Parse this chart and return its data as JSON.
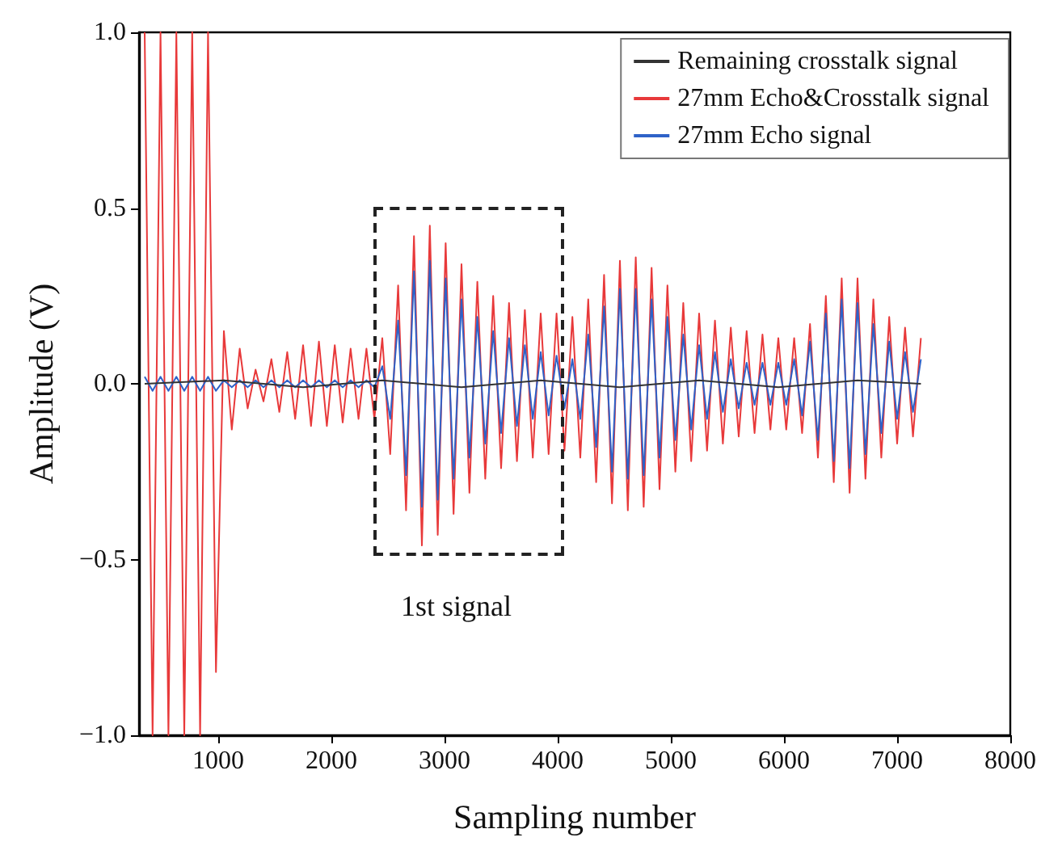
{
  "chart_data": {
    "type": "line",
    "xlabel": "Sampling number",
    "ylabel": "Amplitude (V)",
    "xlim": [
      300,
      8000
    ],
    "xticks": [
      1000,
      2000,
      3000,
      4000,
      5000,
      6000,
      7000,
      8000
    ],
    "ylim": [
      -1.0,
      1.0
    ],
    "yticks": [
      {
        "value": -1.0,
        "label": "−1.0"
      },
      {
        "value": -0.5,
        "label": "−0.5"
      },
      {
        "value": 0,
        "label": "0.0"
      },
      {
        "value": 0.5,
        "label": "0.5"
      },
      {
        "value": 1.0,
        "label": "1.0"
      }
    ],
    "grid": false,
    "legend": "top right",
    "annotations": [
      "1st signal"
    ],
    "x": [
      350,
      420,
      490,
      560,
      630,
      700,
      770,
      840,
      910,
      980,
      1050,
      1120,
      1190,
      1260,
      1330,
      1400,
      1470,
      1540,
      1610,
      1680,
      1750,
      1820,
      1890,
      1960,
      2030,
      2100,
      2170,
      2240,
      2310,
      2380,
      2450,
      2520,
      2590,
      2660,
      2730,
      2800,
      2870,
      2940,
      3010,
      3080,
      3150,
      3220,
      3290,
      3360,
      3430,
      3500,
      3570,
      3640,
      3710,
      3780,
      3850,
      3920,
      3990,
      4060,
      4130,
      4200,
      4270,
      4340,
      4410,
      4480,
      4550,
      4620,
      4690,
      4760,
      4830,
      4900,
      4970,
      5040,
      5110,
      5180,
      5250,
      5320,
      5390,
      5460,
      5530,
      5600,
      5670,
      5740,
      5810,
      5880,
      5950,
      6020,
      6090,
      6160,
      6230,
      6300,
      6370,
      6440,
      6510,
      6580,
      6650,
      6720,
      6790,
      6860,
      6930,
      7000,
      7070,
      7140,
      7210
    ],
    "series": [
      {
        "name": "Remaining crosstalk signal",
        "color": "#333333",
        "x": [
          350,
          1050,
          1750,
          2450,
          3150,
          3850,
          4550,
          5250,
          5950,
          6650,
          7210
        ],
        "values": [
          0,
          0.01,
          -0.01,
          0.01,
          -0.01,
          0.01,
          -0.01,
          0.01,
          -0.01,
          0.01,
          0
        ]
      },
      {
        "name": "27mm Echo&Crosstalk signal",
        "color": "#e8393a",
        "values": [
          1.0,
          -1.0,
          1.0,
          -1.0,
          1.0,
          -1.0,
          1.0,
          -1.0,
          1.0,
          -0.82,
          0.15,
          -0.13,
          0.1,
          -0.07,
          0.04,
          -0.05,
          0.07,
          -0.08,
          0.09,
          -0.1,
          0.11,
          -0.12,
          0.12,
          -0.12,
          0.11,
          -0.11,
          0.1,
          -0.1,
          0.1,
          -0.1,
          0.13,
          -0.2,
          0.28,
          -0.36,
          0.42,
          -0.46,
          0.45,
          -0.43,
          0.4,
          -0.37,
          0.34,
          -0.31,
          0.29,
          -0.27,
          0.25,
          -0.24,
          0.23,
          -0.22,
          0.21,
          -0.21,
          0.2,
          -0.2,
          0.2,
          -0.19,
          0.19,
          -0.21,
          0.24,
          -0.28,
          0.31,
          -0.34,
          0.35,
          -0.36,
          0.36,
          -0.35,
          0.33,
          -0.3,
          0.28,
          -0.25,
          0.23,
          -0.22,
          0.2,
          -0.19,
          0.18,
          -0.17,
          0.16,
          -0.15,
          0.15,
          -0.14,
          0.14,
          -0.13,
          0.13,
          -0.13,
          0.13,
          -0.14,
          0.17,
          -0.21,
          0.25,
          -0.28,
          0.3,
          -0.31,
          0.3,
          -0.27,
          0.24,
          -0.21,
          0.19,
          -0.17,
          0.16,
          -0.15,
          0.13
        ]
      },
      {
        "name": "27mm Echo signal",
        "color": "#2e62c8",
        "values": [
          0.02,
          -0.02,
          0.02,
          -0.02,
          0.02,
          -0.02,
          0.02,
          -0.02,
          0.02,
          -0.02,
          0.01,
          -0.01,
          0.01,
          -0.01,
          0.01,
          -0.01,
          0.01,
          -0.01,
          0.01,
          -0.01,
          0.01,
          -0.01,
          0.01,
          -0.01,
          0.01,
          -0.01,
          0.01,
          -0.01,
          0.01,
          -0.01,
          0.05,
          -0.1,
          0.18,
          -0.26,
          0.32,
          -0.35,
          0.35,
          -0.33,
          0.3,
          -0.27,
          0.24,
          -0.21,
          0.19,
          -0.17,
          0.15,
          -0.14,
          0.13,
          -0.12,
          0.11,
          -0.1,
          0.09,
          -0.09,
          0.08,
          -0.07,
          0.07,
          -0.1,
          0.14,
          -0.18,
          0.22,
          -0.25,
          0.27,
          -0.27,
          0.27,
          -0.26,
          0.24,
          -0.21,
          0.19,
          -0.16,
          0.14,
          -0.13,
          0.11,
          -0.1,
          0.09,
          -0.08,
          0.07,
          -0.07,
          0.06,
          -0.06,
          0.06,
          -0.06,
          0.06,
          -0.06,
          0.07,
          -0.09,
          0.12,
          -0.16,
          0.2,
          -0.22,
          0.24,
          -0.24,
          0.23,
          -0.2,
          0.17,
          -0.14,
          0.12,
          -0.1,
          0.09,
          -0.08,
          0.07
        ]
      }
    ]
  }
}
